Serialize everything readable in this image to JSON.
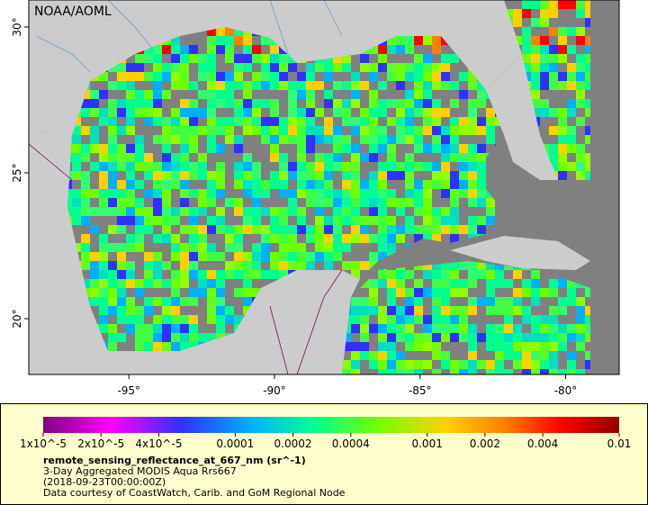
{
  "map": {
    "credit": "NOAA/AOML",
    "lat_ticks": [
      {
        "value": 30,
        "label": "30°"
      },
      {
        "value": 25,
        "label": "25°"
      },
      {
        "value": 20,
        "label": "20°"
      }
    ],
    "lon_ticks": [
      {
        "value": -95,
        "label": "-95°"
      },
      {
        "value": -90,
        "label": "-90°"
      },
      {
        "value": -85,
        "label": "-85°"
      },
      {
        "value": -80,
        "label": "-80°"
      }
    ]
  },
  "legend": {
    "log_scale": true,
    "ticks": [
      {
        "value": 1e-05,
        "label": "1x10^-5"
      },
      {
        "value": 2e-05,
        "label": "2x10^-5"
      },
      {
        "value": 4e-05,
        "label": "4x10^-5"
      },
      {
        "value": 0.0001,
        "label": "0.0001"
      },
      {
        "value": 0.0002,
        "label": "0.0002"
      },
      {
        "value": 0.0004,
        "label": "0.0004"
      },
      {
        "value": 0.001,
        "label": "0.001"
      },
      {
        "value": 0.002,
        "label": "0.002"
      },
      {
        "value": 0.004,
        "label": "0.004"
      },
      {
        "value": 0.01,
        "label": "0.01"
      }
    ],
    "variable": "remote_sensing_reflectance_at_667_nm (sr^-1)",
    "lines": [
      "3-Day Aggregated MODIS Aqua Rrs667",
      "(2018-09-23T00:00:00Z)",
      "Data courtesy of CoastWatch, Carib. and GoM Regional Node"
    ]
  }
}
